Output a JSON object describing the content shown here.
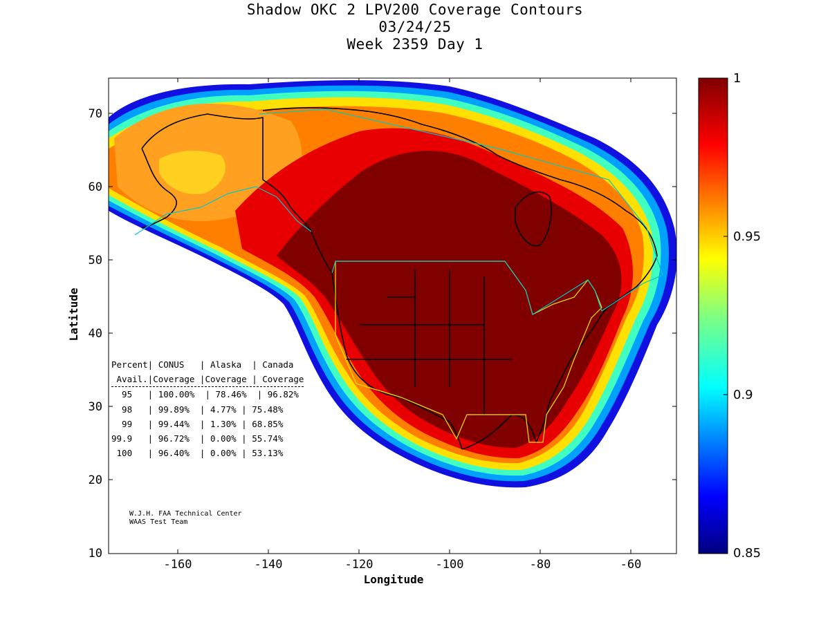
{
  "title": {
    "line1": "Shadow OKC 2 LPV200 Coverage Contours",
    "line2": "03/24/25",
    "line3": "Week 2359 Day 1"
  },
  "axes": {
    "xlabel": "Longitude",
    "ylabel": "Latitude",
    "xticks": [
      "-160",
      "-140",
      "-120",
      "-100",
      "-80",
      "-60"
    ],
    "yticks": [
      "70",
      "60",
      "50",
      "40",
      "30",
      "20",
      "10"
    ],
    "xlim": [
      -175,
      -50
    ],
    "ylim": [
      10,
      75
    ]
  },
  "colorbar": {
    "range": [
      0.85,
      1
    ],
    "labels": [
      "1",
      "0.95",
      "0.9",
      "0.85"
    ],
    "colormap": "jet"
  },
  "stats_table": {
    "header1": "Percent| CONUS   | Alaska  | Canada",
    "header2": " Avail.|Coverage |Coverage | Coverage",
    "rows": [
      "  95   | 100.00%  | 78.46%  | 96.82%",
      "  98   | 99.89%  | 4.77% | 75.48%",
      "  99   | 99.44%  | 1.30% | 68.85%",
      "99.9   | 96.72%  | 0.00% | 55.74%",
      " 100   | 96.40%  | 0.00% | 53.13%"
    ]
  },
  "credit": {
    "line1": "W.J.H. FAA Technical Center",
    "line2": "WAAS Test Team"
  },
  "colors": {
    "max_coverage": "#800000",
    "outer_edge": "#0000c8",
    "service_volume_outline": "#e8e800",
    "fir_outline": "#00c8c8"
  }
}
